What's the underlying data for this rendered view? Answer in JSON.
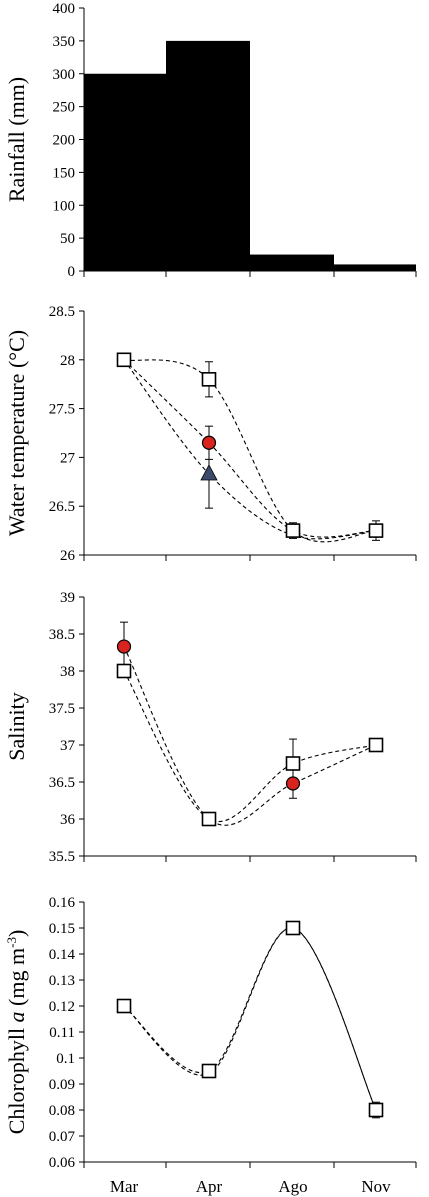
{
  "chart_data": [
    {
      "type": "bar",
      "ylabel": "Rainfall (mm)",
      "ylim": [
        0,
        400
      ],
      "yticks": [
        0,
        50,
        100,
        150,
        200,
        250,
        300,
        350,
        400
      ],
      "categories": [
        "Mar",
        "Apr",
        "Ago",
        "Nov"
      ],
      "show_category_labels": false,
      "values": [
        300,
        350,
        25,
        10
      ],
      "bar_color": "#000000"
    },
    {
      "type": "line",
      "ylabel": "Water temperature (°C)",
      "ylim": [
        26,
        28.5
      ],
      "yticks": [
        "26",
        "26.5",
        "27",
        "27.5",
        "28",
        "28.5"
      ],
      "categories": [
        "Mar",
        "Apr",
        "Ago",
        "Nov"
      ],
      "show_category_labels": false,
      "series": [
        {
          "marker": "square",
          "color": "#ffffff",
          "values": [
            28.0,
            27.8,
            26.25,
            26.25
          ],
          "errors": [
            0,
            0.18,
            0.08,
            0.1
          ]
        },
        {
          "marker": "circle",
          "color": "#d8231f",
          "values": [
            null,
            27.15,
            null,
            null
          ],
          "errors": [
            0,
            0.17,
            0,
            0
          ]
        },
        {
          "marker": "triangle",
          "color": "#3a4a6b",
          "values": [
            null,
            26.83,
            null,
            null
          ],
          "errors": [
            0,
            0.35,
            0,
            0
          ]
        }
      ],
      "connectors": [
        {
          "points": [
            [
              0,
              28.0
            ],
            [
              1,
              27.8
            ],
            [
              2,
              26.25
            ],
            [
              3,
              26.25
            ]
          ]
        },
        {
          "points": [
            [
              0,
              28.0
            ],
            [
              1,
              27.15
            ],
            [
              2,
              26.25
            ],
            [
              3,
              26.25
            ]
          ]
        },
        {
          "points": [
            [
              0,
              28.0
            ],
            [
              1,
              26.83
            ],
            [
              2,
              26.2
            ],
            [
              3,
              26.25
            ]
          ]
        }
      ]
    },
    {
      "type": "line",
      "ylabel": "Salinity",
      "ylim": [
        35.5,
        39
      ],
      "yticks": [
        "35.5",
        "36",
        "36.5",
        "37",
        "37.5",
        "38",
        "38.5",
        "39"
      ],
      "categories": [
        "Mar",
        "Apr",
        "Ago",
        "Nov"
      ],
      "show_category_labels": false,
      "series": [
        {
          "marker": "square",
          "color": "#ffffff",
          "values": [
            38.0,
            36.0,
            36.75,
            37.0
          ],
          "errors": [
            0,
            0,
            0.33,
            0
          ]
        },
        {
          "marker": "circle",
          "color": "#d8231f",
          "values": [
            38.33,
            null,
            36.48,
            null
          ],
          "errors": [
            0.33,
            0,
            0.2,
            0
          ]
        }
      ],
      "connectors": [
        {
          "points": [
            [
              0,
              38.0
            ],
            [
              1,
              36.0
            ],
            [
              2,
              36.75
            ],
            [
              3,
              37.0
            ]
          ]
        },
        {
          "points": [
            [
              0,
              38.33
            ],
            [
              1,
              36.0
            ],
            [
              2,
              36.48
            ],
            [
              3,
              37.0
            ]
          ]
        }
      ]
    },
    {
      "type": "line",
      "ylabel_parts": [
        "Chlorophyll ",
        "a",
        " (mg m",
        "-3",
        ")"
      ],
      "ylim": [
        0.06,
        0.16
      ],
      "yticks": [
        "0.06",
        "0.07",
        "0.08",
        "0.09",
        "0.1",
        "0.11",
        "0.12",
        "0.13",
        "0.14",
        "0.15",
        "0.16"
      ],
      "categories": [
        "Mar",
        "Apr",
        "Ago",
        "Nov"
      ],
      "show_category_labels": true,
      "series": [
        {
          "marker": "square",
          "color": "#ffffff",
          "values": [
            0.12,
            0.095,
            0.15,
            0.08
          ],
          "errors": [
            0,
            0,
            0,
            0.003
          ]
        }
      ],
      "connectors": [
        {
          "points": [
            [
              0,
              0.12
            ],
            [
              1,
              0.095
            ],
            [
              2,
              0.15
            ],
            [
              3,
              0.08
            ]
          ]
        },
        {
          "points": [
            [
              0,
              0.12
            ],
            [
              1,
              0.094
            ],
            [
              2,
              0.15
            ],
            [
              3,
              0.08
            ]
          ]
        }
      ]
    }
  ]
}
